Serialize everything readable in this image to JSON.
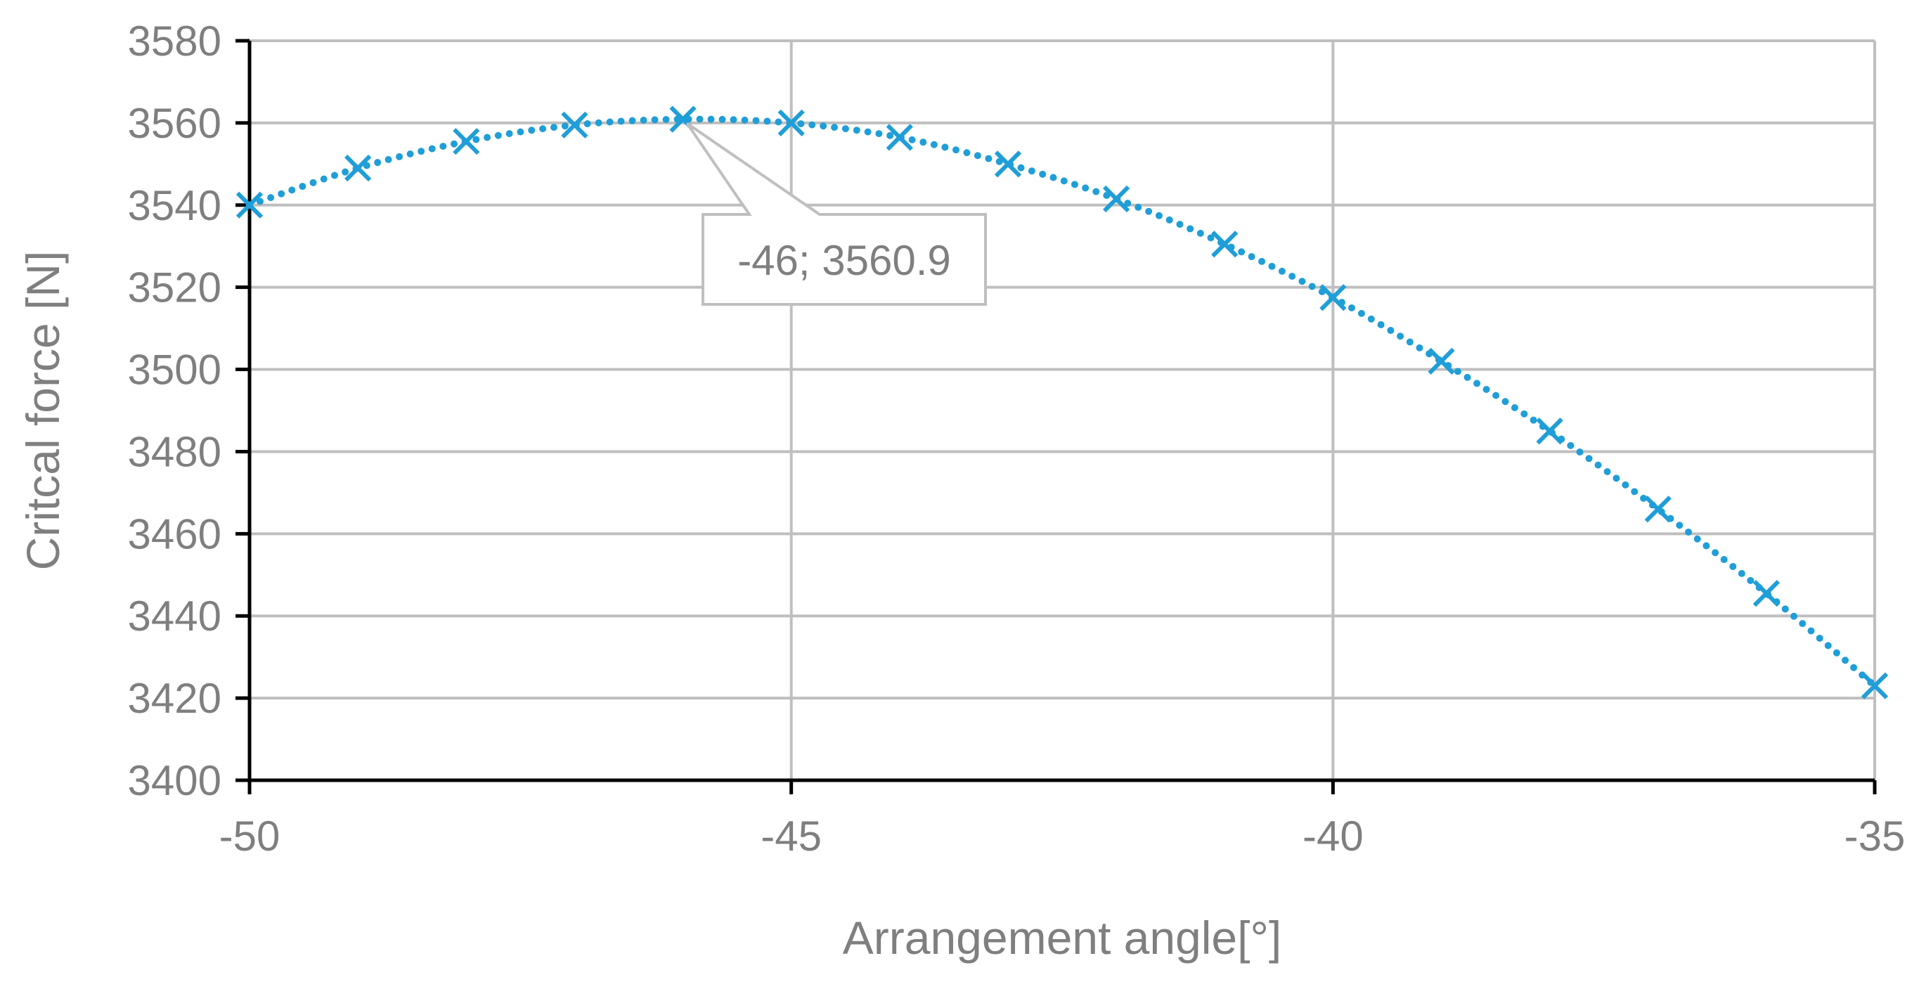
{
  "chart_data": {
    "type": "scatter",
    "title": "",
    "xlabel": "Arrangement angle[°]",
    "ylabel": "Critcal force [N]",
    "xlim": [
      -50,
      -35
    ],
    "ylim": [
      3400,
      3580
    ],
    "x_ticks": [
      -50,
      -45,
      -40,
      -35
    ],
    "y_ticks": [
      3400,
      3420,
      3440,
      3460,
      3480,
      3500,
      3520,
      3540,
      3560,
      3580
    ],
    "x_tick_labels": [
      "-50",
      "-45",
      "-40",
      "-35"
    ],
    "y_tick_labels": [
      "3400",
      "3420",
      "3440",
      "3460",
      "3480",
      "3500",
      "3520",
      "3540",
      "3560",
      "3580"
    ],
    "grid": true,
    "series": [
      {
        "marker": "x",
        "line_style": "dotted",
        "color": "#1f9ed8",
        "x": [
          -50,
          -49,
          -48,
          -47,
          -46,
          -45,
          -44,
          -43,
          -42,
          -41,
          -40,
          -39,
          -38,
          -37,
          -36,
          -35
        ],
        "y": [
          3540.0,
          3549.0,
          3555.5,
          3559.5,
          3560.9,
          3560.0,
          3556.5,
          3550.0,
          3541.5,
          3530.5,
          3517.5,
          3502.0,
          3485.0,
          3466.0,
          3445.5,
          3423.0
        ]
      }
    ],
    "annotations": [
      {
        "text": "-46; 3560.9",
        "x": -46,
        "y": 3560.9
      }
    ]
  },
  "colors": {
    "series": "#1f9ed8",
    "grid": "#bfbfbf",
    "axis": "#000000",
    "text": "#7f7f7f"
  }
}
